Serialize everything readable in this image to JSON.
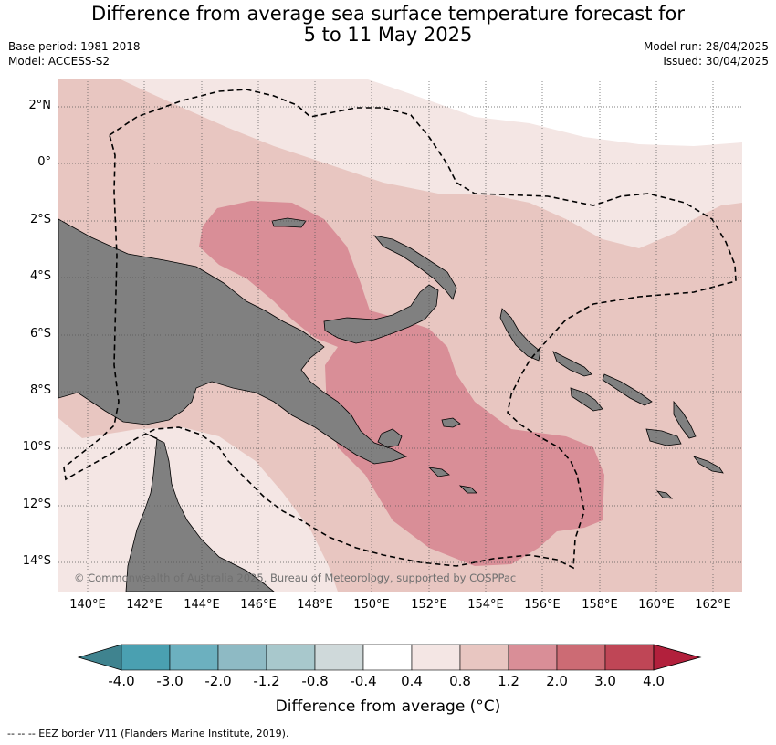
{
  "title": {
    "line1": "Difference from average sea surface temperature forecast for",
    "line2": "5 to 11 May 2025"
  },
  "meta": {
    "base_period": "Base period: 1981-2018",
    "model": "Model: ACCESS-S2",
    "model_run": "Model run: 28/04/2025",
    "issued": "Issued: 30/04/2025"
  },
  "latitude_labels": [
    "2°N",
    "0°",
    "2°S",
    "4°S",
    "6°S",
    "8°S",
    "10°S",
    "12°S",
    "14°S"
  ],
  "longitude_labels": [
    "140°E",
    "142°E",
    "144°E",
    "146°E",
    "148°E",
    "150°E",
    "152°E",
    "154°E",
    "156°E",
    "158°E",
    "160°E",
    "162°E"
  ],
  "credit": "© Commonwealth of Australia 2025, Bureau of Meteorology, supported by COSPPac",
  "colorbar": {
    "ticks": [
      "-4.0",
      "-3.0",
      "-2.0",
      "-1.2",
      "-0.8",
      "-0.4",
      "0.4",
      "0.8",
      "1.2",
      "2.0",
      "3.0",
      "4.0"
    ],
    "colors": [
      "#3f838f",
      "#4aa0b1",
      "#6cb0bf",
      "#8ebac4",
      "#a8c8cc",
      "#cfd9da",
      "#ffffff",
      "#f4e6e4",
      "#e8c6c1",
      "#d98e97",
      "#cc6b74",
      "#bf4656",
      "#b2203c"
    ],
    "title": "Difference from average (°C)"
  },
  "footnote": "--  --  -- EEZ border V11 (Flanders Marine Institute, 2019).",
  "colors": {
    "land": "#808080",
    "class_0_4_0_8": "#f4e6e4",
    "class_0_8_1_2": "#e8c6c1",
    "class_1_2_2_0": "#d98e97"
  }
}
